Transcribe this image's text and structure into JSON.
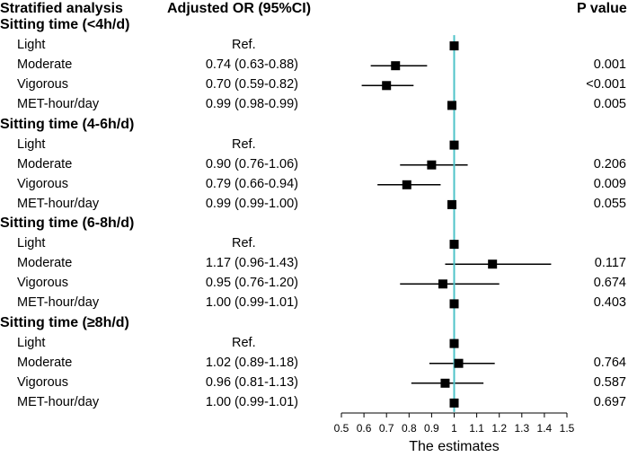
{
  "header": {
    "col_analysis": "Stratified analysis",
    "col_or": "Adjusted OR (95%CI)",
    "col_p": "P value"
  },
  "chart_data": {
    "type": "forest",
    "xlabel": "The estimates",
    "xlim": [
      0.5,
      1.5
    ],
    "xticks": [
      0.5,
      0.6,
      0.7,
      0.8,
      0.9,
      1,
      1.1,
      1.2,
      1.3,
      1.4,
      1.5
    ],
    "xtick_labels": [
      "0.5",
      "0.6",
      "0.7",
      "0.8",
      "0.9",
      "1",
      "1.1",
      "1.2",
      "1.3",
      "1.4",
      "1.5"
    ],
    "reference_line": 1,
    "reference_color": "#4fc3c8",
    "groups": [
      {
        "name": "Sitting time (<4h/d)",
        "rows": [
          {
            "label": "Light",
            "or_text": "Ref.",
            "p": "",
            "est": 1,
            "lo": null,
            "hi": null
          },
          {
            "label": "Moderate",
            "or_text": "0.74 (0.63-0.88)",
            "p": "0.001",
            "est": 0.74,
            "lo": 0.63,
            "hi": 0.88
          },
          {
            "label": "Vigorous",
            "or_text": "0.70 (0.59-0.82)",
            "p": "<0.001",
            "est": 0.7,
            "lo": 0.59,
            "hi": 0.82
          },
          {
            "label": "MET-hour/day",
            "or_text": "0.99 (0.98-0.99)",
            "p": "0.005",
            "est": 0.99,
            "lo": 0.98,
            "hi": 0.99
          }
        ]
      },
      {
        "name": "Sitting time (4-6h/d)",
        "rows": [
          {
            "label": "Light",
            "or_text": "Ref.",
            "p": "",
            "est": 1,
            "lo": null,
            "hi": null
          },
          {
            "label": "Moderate",
            "or_text": "0.90 (0.76-1.06)",
            "p": "0.206",
            "est": 0.9,
            "lo": 0.76,
            "hi": 1.06
          },
          {
            "label": "Vigorous",
            "or_text": "0.79 (0.66-0.94)",
            "p": "0.009",
            "est": 0.79,
            "lo": 0.66,
            "hi": 0.94
          },
          {
            "label": "MET-hour/day",
            "or_text": "0.99 (0.99-1.00)",
            "p": "0.055",
            "est": 0.99,
            "lo": 0.99,
            "hi": 1.0
          }
        ]
      },
      {
        "name": "Sitting time (6-8h/d)",
        "rows": [
          {
            "label": "Light",
            "or_text": "Ref.",
            "p": "",
            "est": 1,
            "lo": null,
            "hi": null
          },
          {
            "label": "Moderate",
            "or_text": "1.17 (0.96-1.43)",
            "p": "0.117",
            "est": 1.17,
            "lo": 0.96,
            "hi": 1.43
          },
          {
            "label": "Vigorous",
            "or_text": "0.95 (0.76-1.20)",
            "p": "0.674",
            "est": 0.95,
            "lo": 0.76,
            "hi": 1.2
          },
          {
            "label": "MET-hour/day",
            "or_text": "1.00 (0.99-1.01)",
            "p": "0.403",
            "est": 1.0,
            "lo": 0.99,
            "hi": 1.01
          }
        ]
      },
      {
        "name": "Sitting time (≥8h/d)",
        "rows": [
          {
            "label": "Light",
            "or_text": "Ref.",
            "p": "",
            "est": 1,
            "lo": null,
            "hi": null
          },
          {
            "label": "Moderate",
            "or_text": "1.02 (0.89-1.18)",
            "p": "0.764",
            "est": 1.02,
            "lo": 0.89,
            "hi": 1.18
          },
          {
            "label": "Vigorous",
            "or_text": "0.96 (0.81-1.13)",
            "p": "0.587",
            "est": 0.96,
            "lo": 0.81,
            "hi": 1.13
          },
          {
            "label": "MET-hour/day",
            "or_text": "1.00 (0.99-1.01)",
            "p": "0.697",
            "est": 1.0,
            "lo": 0.99,
            "hi": 1.01
          }
        ]
      }
    ]
  }
}
